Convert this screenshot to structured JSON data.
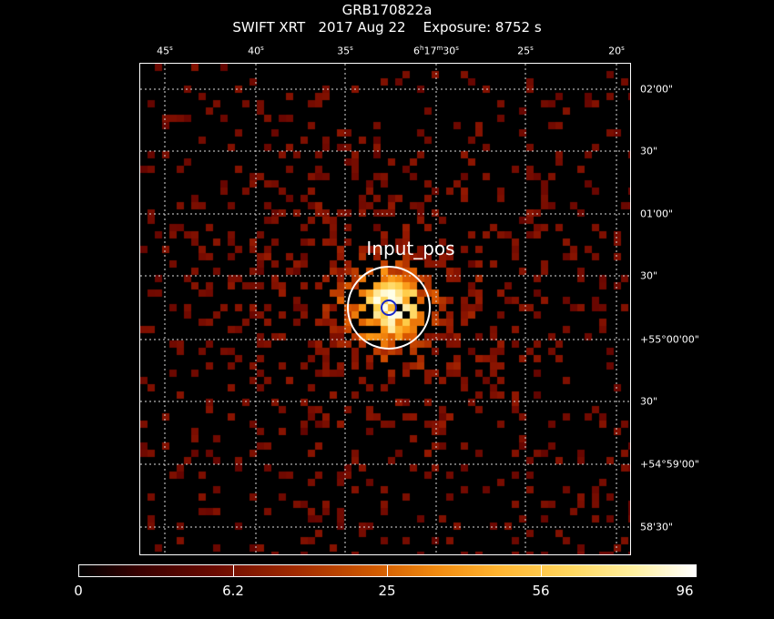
{
  "header": {
    "object": "GRB170822a",
    "instrument_line": "SWIFT XRT   2017 Aug 22    Exposure: 8752 s"
  },
  "axes": {
    "ra_labels": [
      "45s",
      "40s",
      "35s",
      "6h17m30s",
      "25s",
      "20s"
    ],
    "dec_labels": [
      "02'00\"",
      "30\"",
      "01'00\"",
      "30\"",
      "+55°00'00\"",
      "30\"",
      "+54°59'00\"",
      "58'30\""
    ]
  },
  "region": {
    "label": "Input_pos",
    "outer_color": "#ffffff",
    "inner_color": "#1020c0"
  },
  "colorbar": {
    "labels": [
      "0",
      "6.2",
      "25",
      "56",
      "96"
    ]
  },
  "image": {
    "description_colormap": "heat"
  }
}
